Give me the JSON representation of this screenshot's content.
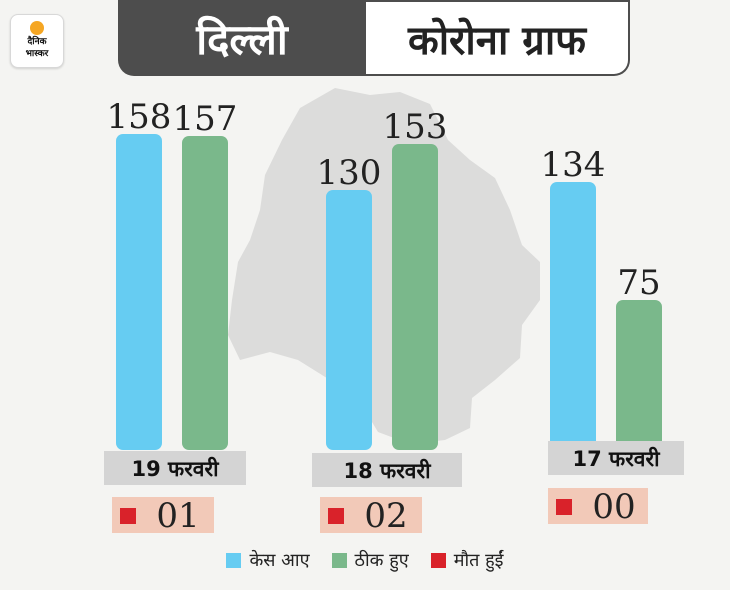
{
  "header": {
    "logo_line1": "दैनिक",
    "logo_line2": "भास्कर",
    "title_left": "दिल्ली",
    "title_right": "कोरोना ग्राफ"
  },
  "chart_data": {
    "type": "bar",
    "categories": [
      "19 फरवरी",
      "18 फरवरी",
      "17 फरवरी"
    ],
    "series": [
      {
        "name": "केस आए",
        "values": [
          158,
          130,
          134
        ],
        "color": "#66ccf2"
      },
      {
        "name": "ठीक हुए",
        "values": [
          157,
          153,
          75
        ],
        "color": "#7ab88b"
      }
    ],
    "deaths": {
      "name": "मौत हुईं",
      "values": [
        "01",
        "02",
        "00"
      ],
      "color": "#d9222a"
    },
    "ylim": [
      0,
      158
    ],
    "legend": "bottom"
  },
  "legend": [
    {
      "label": "केस आए",
      "color": "#66ccf2"
    },
    {
      "label": "ठीक हुए",
      "color": "#7ab88b"
    },
    {
      "label": "मौत हुईं",
      "color": "#d9222a"
    }
  ]
}
